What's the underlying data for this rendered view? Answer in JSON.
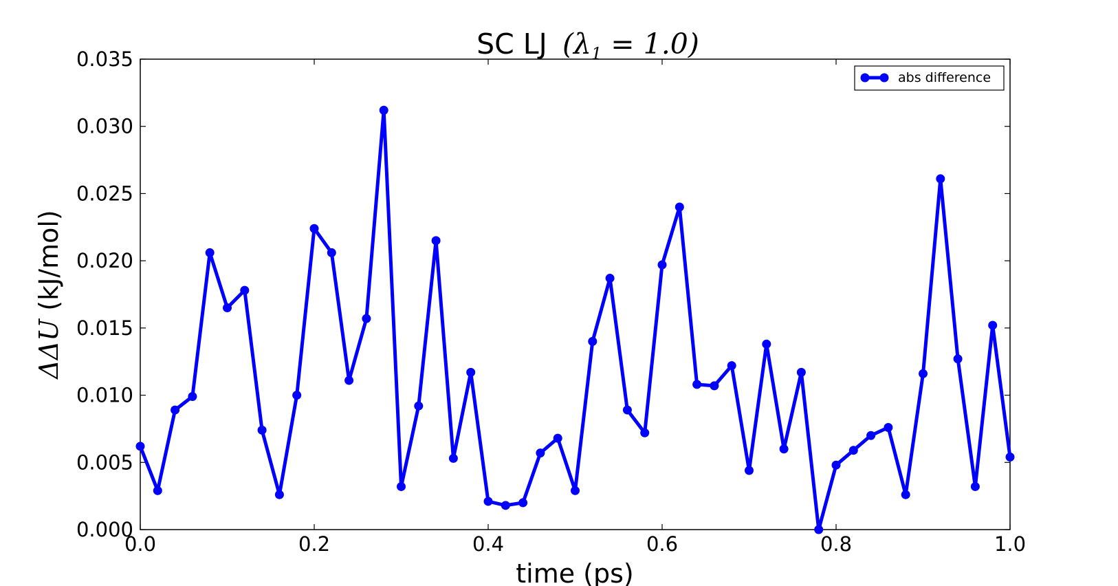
{
  "chart_data": {
    "type": "line",
    "title_prefix": "SC LJ",
    "title_math": "(λ",
    "title_math_sub": "1",
    "title_math_rest": " = 1.0)",
    "xlabel": "time (ps)",
    "ylabel_math": "ΔΔU",
    "ylabel_rest": " (kJ/mol)",
    "xlim": [
      0.0,
      1.0
    ],
    "ylim": [
      0.0,
      0.035
    ],
    "x_ticks": [
      "0.0",
      "0.2",
      "0.4",
      "0.6",
      "0.8",
      "1.0"
    ],
    "y_ticks": [
      "0.000",
      "0.005",
      "0.010",
      "0.015",
      "0.020",
      "0.025",
      "0.030",
      "0.035"
    ],
    "grid": false,
    "legend_position": "top-right",
    "colors": {
      "series": "#0000ff",
      "axes": "#000000"
    },
    "series": [
      {
        "name": "abs difference",
        "x": [
          0.0,
          0.02,
          0.04,
          0.06,
          0.08,
          0.1,
          0.12,
          0.14,
          0.16,
          0.18,
          0.2,
          0.22,
          0.24,
          0.26,
          0.28,
          0.3,
          0.32,
          0.34,
          0.36,
          0.38,
          0.4,
          0.42,
          0.44,
          0.46,
          0.48,
          0.5,
          0.52,
          0.54,
          0.56,
          0.58,
          0.6,
          0.62,
          0.64,
          0.66,
          0.68,
          0.7,
          0.72,
          0.74,
          0.76,
          0.78,
          0.8,
          0.82,
          0.84,
          0.86,
          0.88,
          0.9,
          0.92,
          0.94,
          0.96,
          0.98,
          1.0
        ],
        "values": [
          0.0062,
          0.0029,
          0.0089,
          0.0099,
          0.0206,
          0.0165,
          0.0178,
          0.0074,
          0.0026,
          0.01,
          0.0224,
          0.0206,
          0.0111,
          0.0157,
          0.0312,
          0.0032,
          0.0092,
          0.0215,
          0.0053,
          0.0117,
          0.0021,
          0.0018,
          0.002,
          0.0057,
          0.0068,
          0.0029,
          0.014,
          0.0187,
          0.0089,
          0.0072,
          0.0197,
          0.024,
          0.0108,
          0.0107,
          0.0122,
          0.0044,
          0.0138,
          0.006,
          0.0117,
          0.0,
          0.0048,
          0.0059,
          0.007,
          0.0076,
          0.0026,
          0.0116,
          0.0261,
          0.0127,
          0.0032,
          0.0152,
          0.0054
        ]
      }
    ]
  }
}
